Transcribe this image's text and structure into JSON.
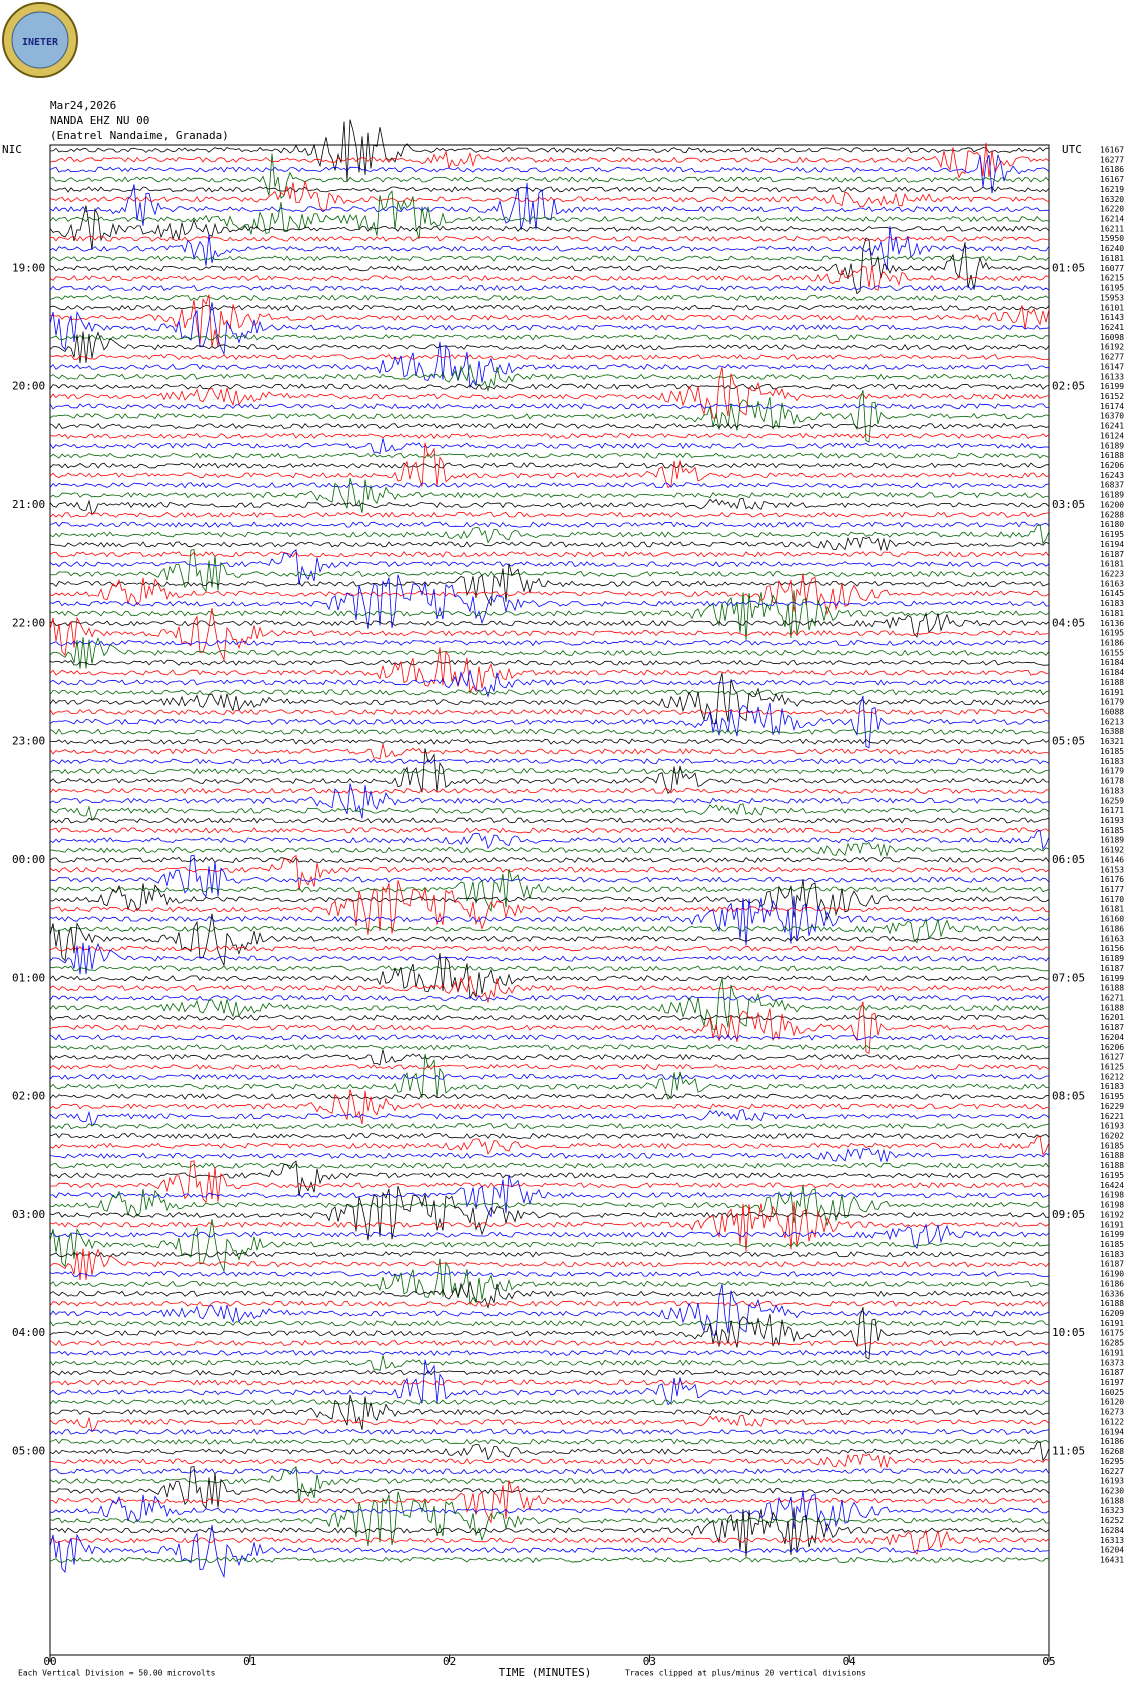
{
  "logo": "INETER",
  "header": {
    "date": "Mar24,2026",
    "station": "NANDA EHZ NU 00",
    "location": "(Enatrel Nandaime, Granada)"
  },
  "left_zone": "NIC",
  "right_zone": "UTC",
  "left_hours": [
    "19:00",
    "20:00",
    "21:00",
    "22:00",
    "23:00",
    "00:00",
    "01:00",
    "02:00",
    "03:00",
    "04:00",
    "05:00"
  ],
  "right_hours": [
    "01:05",
    "02:05",
    "03:05",
    "04:05",
    "05:05",
    "06:05",
    "07:05",
    "08:05",
    "09:05",
    "10:05",
    "11:05"
  ],
  "trace_colors": [
    "#000000",
    "#ff0000",
    "#0000ff",
    "#006400"
  ],
  "line_counts": [
    "16167",
    "16277",
    "16186",
    "16167",
    "16219",
    "16320",
    "16220",
    "16214",
    "16211",
    "15950",
    "16240",
    "16181",
    "16077",
    "16215",
    "16195",
    "15953",
    "16101",
    "16143",
    "16241",
    "16098",
    "16192",
    "16277",
    "16147",
    "16133",
    "16199",
    "16152",
    "16174",
    "16370",
    "16241",
    "16124",
    "16189",
    "16188",
    "16206",
    "16243",
    "16837",
    "16189",
    "16200",
    "16288",
    "16180",
    "16195",
    "16194",
    "16187",
    "16181",
    "16223",
    "16163",
    "16145",
    "16183",
    "16181",
    "16136",
    "16195",
    "16186",
    "16155",
    "16184",
    "16184",
    "16188",
    "16191",
    "16179",
    "16088",
    "16213",
    "16388",
    "16321",
    "16185",
    "16183",
    "16179",
    "16178",
    "16183",
    "16259",
    "16171",
    "16193",
    "16185",
    "16189",
    "16192",
    "16146",
    "16153",
    "16176",
    "16177",
    "16170",
    "16181",
    "16160",
    "16186",
    "16163",
    "16156",
    "16189",
    "16187",
    "16199",
    "16188",
    "16271",
    "16188",
    "16201",
    "16187",
    "16204",
    "16206",
    "16127",
    "16125",
    "16212",
    "16183",
    "16195",
    "16229",
    "16221",
    "16193",
    "16202",
    "16185",
    "16188",
    "16188",
    "16195",
    "16424",
    "16198",
    "16198",
    "16192",
    "16191",
    "16199",
    "16185",
    "16183",
    "16187",
    "16190",
    "16186",
    "16336",
    "16188",
    "16209",
    "16191",
    "16175",
    "16285",
    "16191",
    "16373",
    "16187",
    "16197",
    "16025",
    "16120",
    "16273",
    "16122",
    "16194",
    "16186",
    "16268",
    "16295",
    "16227",
    "16193",
    "16230",
    "16188",
    "16323",
    "16252",
    "16284",
    "16313",
    "16204",
    "16431"
  ],
  "x_axis": {
    "title": "TIME (MINUTES)",
    "xlim": [
      0,
      5
    ],
    "xticks": [
      {
        "value": 0,
        "label": "00"
      },
      {
        "value": 1,
        "label": "01"
      },
      {
        "value": 2,
        "label": "02"
      },
      {
        "value": 3,
        "label": "03"
      },
      {
        "value": 4,
        "label": "04"
      },
      {
        "value": 5,
        "label": "05"
      }
    ]
  },
  "footer": {
    "scale": "Each Vertical Division = 50.00 microvolts",
    "clip": "Traces clipped at plus/minus 20 vertical divisions"
  }
}
